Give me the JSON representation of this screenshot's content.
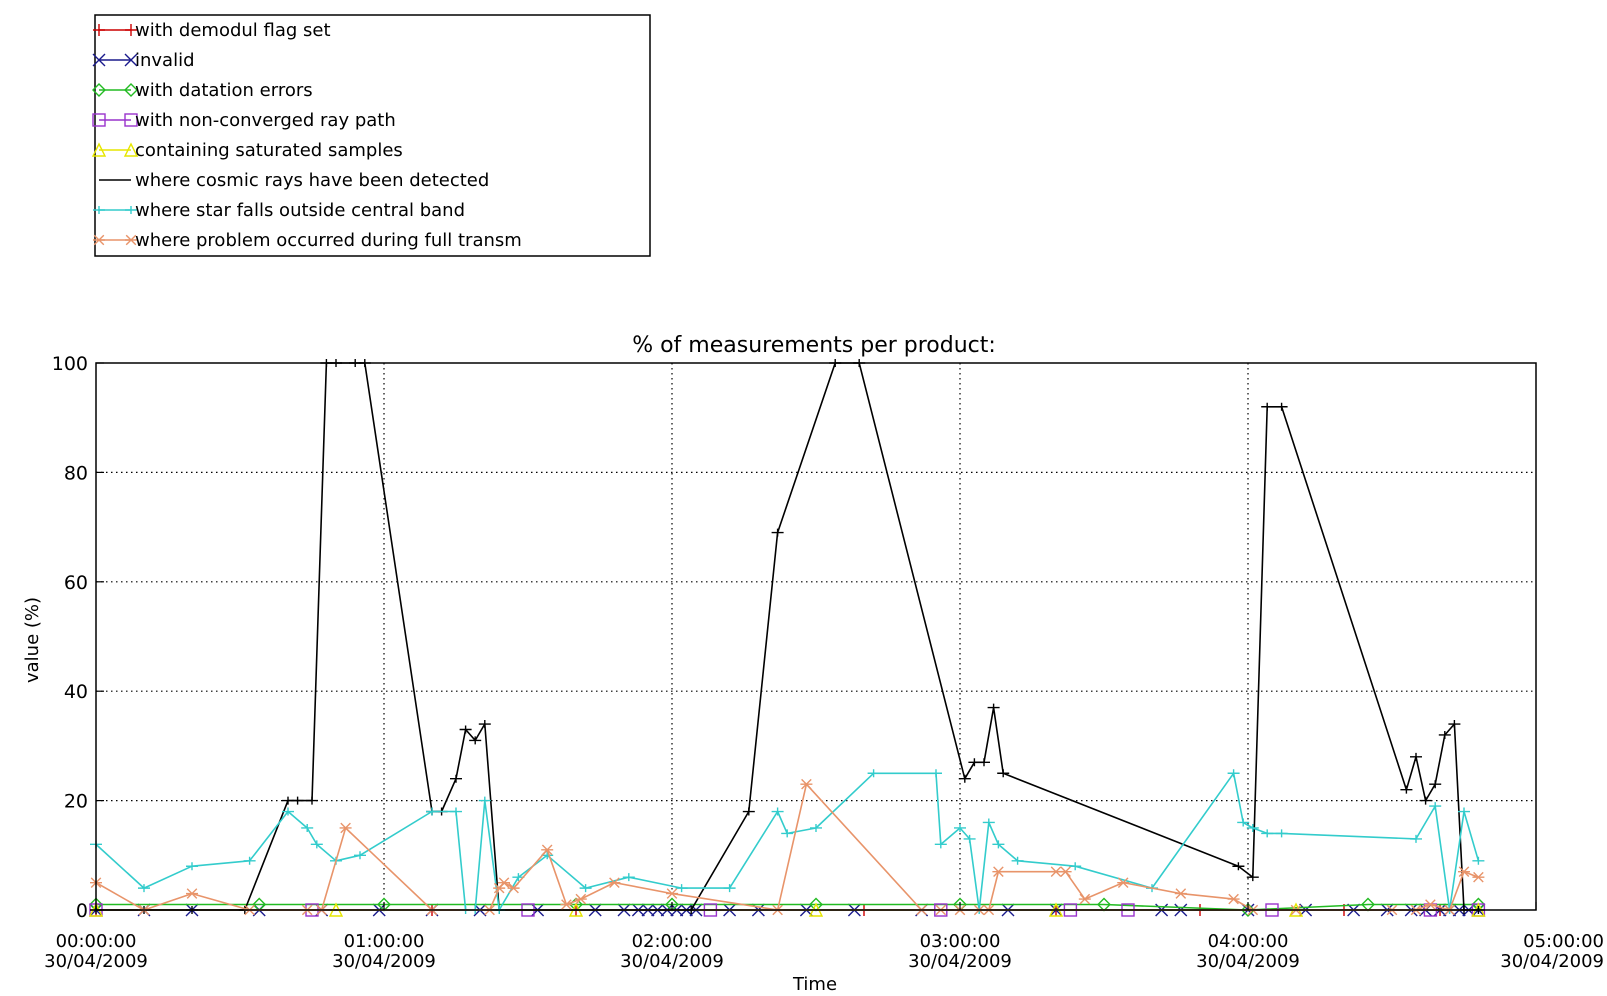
{
  "chart_data": {
    "type": "line",
    "title": "% of measurements per product:",
    "xlabel": "Time",
    "ylabel": "value (%)",
    "ylim": [
      0,
      100
    ],
    "yticks": [
      "0",
      "20",
      "40",
      "60",
      "80",
      "100"
    ],
    "y_tick_values": [
      0,
      20,
      40,
      60,
      80,
      100
    ],
    "xlim": [
      0,
      300
    ],
    "x_unit": "minutes after 00:00:00 30/04/2009",
    "x_tick_values": [
      0,
      60,
      120,
      180,
      240,
      300
    ],
    "xticks": [
      {
        "time": "00:00:00",
        "date": "30/04/2009"
      },
      {
        "time": "01:00:00",
        "date": "30/04/2009"
      },
      {
        "time": "02:00:00",
        "date": "30/04/2009"
      },
      {
        "time": "03:00:00",
        "date": "30/04/2009"
      },
      {
        "time": "04:00:00",
        "date": "30/04/2009"
      },
      {
        "time": "05:00:00",
        "date": "30/04/2009"
      }
    ],
    "grid": true,
    "legend_position": "top-left, above plot",
    "series": [
      {
        "name": "with demodul flag set",
        "color": "#cc0000",
        "marker": "plus",
        "x": [
          0,
          70,
          100,
          160,
          200,
          230,
          260,
          280
        ],
        "y": [
          0,
          0,
          0,
          0,
          0,
          0,
          0,
          0
        ]
      },
      {
        "name": "invalid",
        "color": "#1a1a8c",
        "marker": "x",
        "x": [
          0,
          10,
          20,
          34,
          47,
          59,
          70,
          80,
          92,
          104,
          110,
          113,
          115,
          117,
          119,
          121,
          123,
          125,
          132,
          138,
          148,
          158,
          172,
          190,
          200,
          222,
          226,
          240,
          252,
          262,
          269,
          274,
          277,
          280,
          282,
          284,
          286,
          288
        ],
        "y": [
          0,
          0,
          0,
          0,
          0,
          0,
          0,
          0,
          0,
          0,
          0,
          0,
          0,
          0,
          0,
          0,
          0,
          0,
          0,
          0,
          0,
          0,
          0,
          0,
          0,
          0,
          0,
          0,
          0,
          0,
          0,
          0,
          0,
          0,
          0,
          0,
          0,
          0
        ]
      },
      {
        "name": "with datation errors",
        "color": "#22bb22",
        "marker": "diamond",
        "x": [
          0,
          34,
          60,
          100,
          120,
          150,
          180,
          210,
          240,
          265,
          288
        ],
        "y": [
          1,
          1,
          1,
          1,
          1,
          1,
          1,
          1,
          0,
          1,
          1
        ]
      },
      {
        "name": "with non-converged ray path",
        "color": "#9933cc",
        "marker": "square",
        "x": [
          0,
          45,
          90,
          128,
          176,
          203,
          215,
          245,
          278,
          288
        ],
        "y": [
          0,
          0,
          0,
          0,
          0,
          0,
          0,
          0,
          0,
          0
        ]
      },
      {
        "name": "containing saturated samples",
        "color": "#e6e600",
        "marker": "triangle",
        "x": [
          0,
          50,
          100,
          150,
          200,
          250,
          288
        ],
        "y": [
          0,
          0,
          0,
          0,
          0,
          0,
          0
        ]
      },
      {
        "name": "where cosmic rays have been detected",
        "color": "#000000",
        "marker": "bar",
        "x": [
          0,
          10,
          20,
          31,
          40,
          42,
          45,
          48,
          50,
          54,
          56,
          70,
          72,
          75,
          77,
          79,
          81,
          84,
          124,
          136,
          142,
          154,
          159,
          181,
          183,
          185,
          187,
          189,
          238,
          241,
          244,
          247,
          273,
          275,
          277,
          279,
          281,
          283,
          285,
          288
        ],
        "y": [
          0,
          0,
          0,
          0,
          20,
          20,
          20,
          100,
          100,
          100,
          100,
          18,
          18,
          24,
          33,
          31,
          34,
          0,
          0,
          18,
          69,
          100,
          100,
          24,
          27,
          27,
          37,
          25,
          8,
          6,
          92,
          92,
          22,
          28,
          20,
          23,
          32,
          34,
          0,
          0
        ]
      },
      {
        "name": "where star falls outside central band",
        "color": "#33cccc",
        "marker": "bar",
        "x": [
          0,
          10,
          20,
          32,
          40,
          44,
          46,
          50,
          55,
          70,
          75,
          77,
          79,
          81,
          84,
          88,
          94,
          102,
          111,
          122,
          132,
          142,
          144,
          150,
          162,
          175,
          176,
          180,
          182,
          184,
          186,
          188,
          192,
          204,
          220,
          237,
          239,
          241,
          244,
          247,
          275,
          279,
          282,
          285,
          288
        ],
        "y": [
          12,
          4,
          8,
          9,
          18,
          15,
          12,
          9,
          10,
          18,
          18,
          0,
          0,
          20,
          0,
          6,
          10,
          4,
          6,
          4,
          4,
          18,
          14,
          15,
          25,
          25,
          12,
          15,
          13,
          0,
          16,
          12,
          9,
          8,
          4,
          25,
          16,
          15,
          14,
          14,
          13,
          19,
          0,
          18,
          9
        ]
      },
      {
        "name": "where problem occurred during full transm",
        "color": "#e8946a",
        "marker": "star",
        "x": [
          0,
          10,
          20,
          32,
          44,
          47,
          52,
          70,
          82,
          84,
          85,
          87,
          94,
          98,
          101,
          108,
          120,
          142,
          148,
          172,
          176,
          180,
          184,
          186,
          188,
          200,
          202,
          206,
          214,
          226,
          237,
          241,
          250,
          270,
          275,
          278,
          282,
          285,
          288
        ],
        "y": [
          5,
          0,
          3,
          0,
          0,
          0,
          15,
          0,
          0,
          4,
          5,
          4,
          11,
          1,
          2,
          5,
          3,
          0,
          23,
          0,
          0,
          0,
          0,
          0,
          7,
          7,
          7,
          2,
          5,
          3,
          2,
          0,
          0,
          0,
          0,
          1,
          0,
          7,
          6
        ]
      }
    ]
  }
}
